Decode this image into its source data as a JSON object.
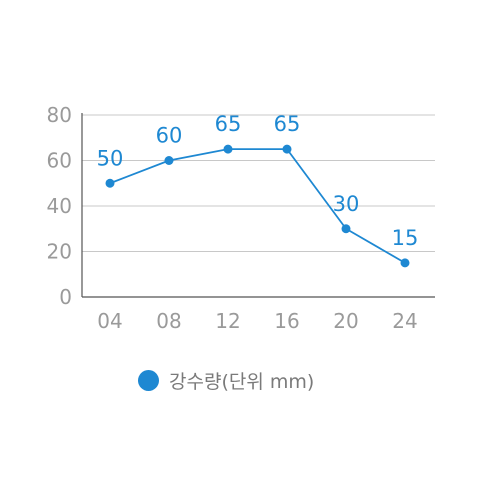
{
  "chart_data": {
    "type": "line",
    "title": "",
    "xlabel": "",
    "ylabel": "",
    "categories": [
      "04",
      "08",
      "12",
      "16",
      "20",
      "24"
    ],
    "series": [
      {
        "name": "강수량(단위 mm)",
        "values": [
          50,
          60,
          65,
          65,
          30,
          15
        ]
      }
    ],
    "ylim": [
      0,
      80
    ],
    "yticks": [
      "0",
      "20",
      "40",
      "60",
      "80"
    ],
    "grid": true,
    "legend": "bottom"
  },
  "colors": {
    "series": "#1e88d2",
    "grid": "#c8c8c8",
    "axis": "#555555",
    "tick_text": "#9a9a9a"
  }
}
